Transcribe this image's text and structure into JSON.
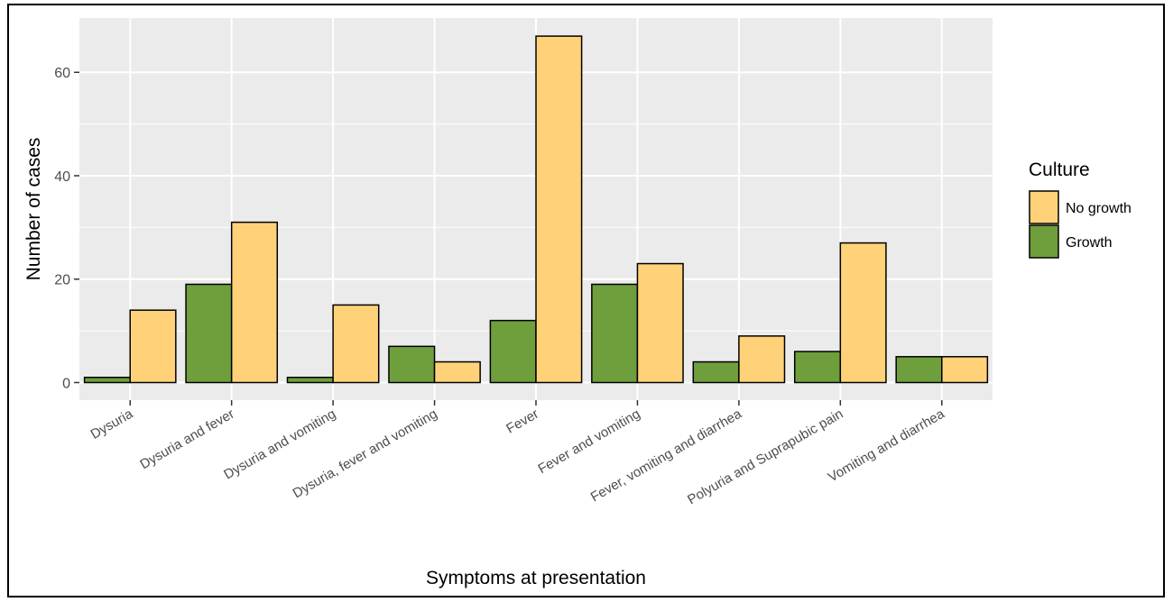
{
  "chart_data": {
    "type": "bar",
    "xlabel": "Symptoms at presentation",
    "ylabel": "Number of cases",
    "categories": [
      "Dysuria",
      "Dysuria and fever",
      "Dysuria and vomiting",
      "Dysuria, fever and vomiting",
      "Fever",
      "Fever and vomiting",
      "Fever, vomiting and diarrhea",
      "Polyuria and Suprapubic pain",
      "Vomiting and diarrhea"
    ],
    "series": [
      {
        "name": "Growth",
        "color": "#6f9e3c",
        "values": [
          1,
          19,
          1,
          7,
          12,
          19,
          4,
          6,
          5
        ]
      },
      {
        "name": "No growth",
        "color": "#ffd27a",
        "values": [
          14,
          31,
          15,
          4,
          67,
          23,
          9,
          27,
          5
        ]
      }
    ],
    "yticks": [
      0,
      20,
      40,
      60
    ],
    "ylim": [
      -3.4,
      70.5
    ],
    "grid": true,
    "legend": {
      "title": "Culture",
      "placement": "right",
      "items": [
        {
          "label": "No growth",
          "color": "#ffd27a"
        },
        {
          "label": "Growth",
          "color": "#6f9e3c"
        }
      ]
    }
  }
}
